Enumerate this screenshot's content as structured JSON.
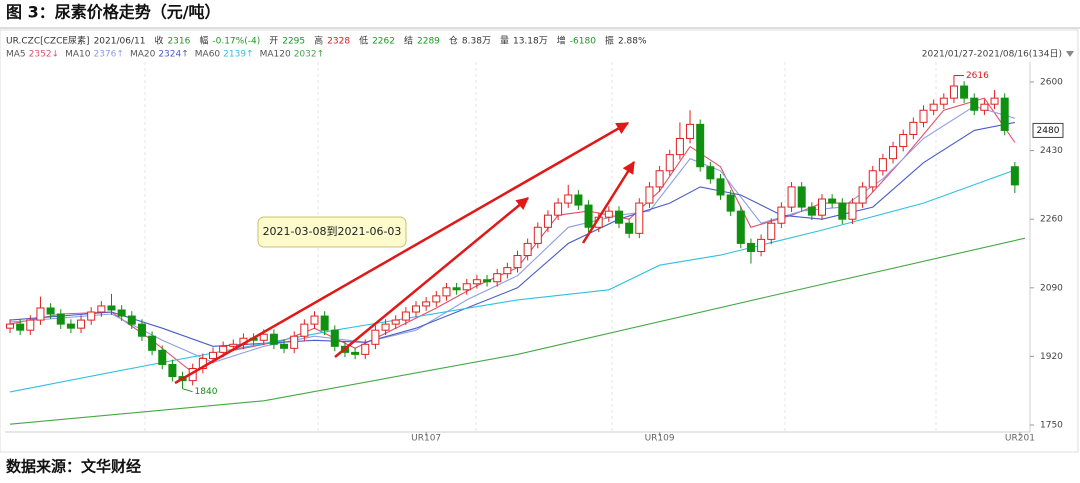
{
  "title": "图 3：尿素价格走势（元/吨）",
  "source": "数据来源：文华财经",
  "chart_data": {
    "type": "candlestick",
    "header": [
      {
        "label": "UR.CZC[CZCE尿素]",
        "value": "2021/06/11",
        "color": "#333333"
      },
      {
        "label": "收",
        "value": "2316",
        "color": "#1a9a1a"
      },
      {
        "label": "幅",
        "value": "-0.17%(-4)",
        "color": "#1a9a1a"
      },
      {
        "label": "开",
        "value": "2295",
        "color": "#1a9a1a"
      },
      {
        "label": "高",
        "value": "2328",
        "color": "#d02020"
      },
      {
        "label": "低",
        "value": "2262",
        "color": "#1a9a1a"
      },
      {
        "label": "结",
        "value": "2289",
        "color": "#1a9a1a"
      },
      {
        "label": "仓",
        "value": "8.38万",
        "color": "#333333"
      },
      {
        "label": "量",
        "value": "13.18万",
        "color": "#333333"
      },
      {
        "label": "增",
        "value": "-6180",
        "color": "#1a9a1a"
      },
      {
        "label": "振",
        "value": "2.88%",
        "color": "#333333"
      }
    ],
    "range_label": "2021/01/27-2021/08/16(134日)",
    "annotation": "2021-03-08到2021-06-03",
    "last_price": 2480,
    "up_color": "#e02020",
    "down_color": "#109010",
    "xlim": [
      0,
      100
    ],
    "xticks": [
      {
        "value": 41,
        "label": "UR107"
      },
      {
        "value": 64,
        "label": "UR109"
      },
      {
        "value": 99.5,
        "label": "UR201"
      }
    ],
    "ylim": [
      1750,
      2600
    ],
    "yticks": [
      1750,
      1920,
      2090,
      2260,
      2430,
      2600
    ],
    "open": [
      1990,
      2000,
      1985,
      2010,
      2040,
      2025,
      2000,
      1990,
      2010,
      2030,
      2045,
      2035,
      2020,
      2000,
      1970,
      1935,
      1900,
      1870,
      1860,
      1890,
      1915,
      1930,
      1945,
      1950,
      1965,
      1960,
      1975,
      1950,
      1940,
      1970,
      2000,
      2020,
      1985,
      1945,
      1930,
      1925,
      1950,
      1985,
      2000,
      2010,
      2030,
      2045,
      2055,
      2070,
      2090,
      2085,
      2100,
      2110,
      2105,
      2125,
      2140,
      2170,
      2200,
      2240,
      2270,
      2300,
      2320,
      2295,
      2240,
      2265,
      2280,
      2250,
      2225,
      2300,
      2340,
      2380,
      2420,
      2460,
      2495,
      2390,
      2360,
      2320,
      2280,
      2200,
      2180,
      2210,
      2250,
      2290,
      2340,
      2290,
      2270,
      2310,
      2300,
      2260,
      2300,
      2340,
      2380,
      2410,
      2440,
      2470,
      2500,
      2530,
      2545,
      2560,
      2590,
      2560,
      2530,
      2545,
      2560,
      2390
    ],
    "high": [
      2012,
      2012,
      2022,
      2068,
      2052,
      2037,
      2012,
      2022,
      2042,
      2057,
      2075,
      2047,
      2032,
      2012,
      1982,
      1947,
      1912,
      1882,
      1902,
      1927,
      1942,
      1957,
      1962,
      1977,
      1977,
      1987,
      1987,
      1962,
      1982,
      2012,
      2032,
      2032,
      1997,
      1957,
      1942,
      1962,
      1997,
      2012,
      2022,
      2042,
      2057,
      2067,
      2082,
      2102,
      2102,
      2112,
      2122,
      2122,
      2137,
      2152,
      2182,
      2212,
      2252,
      2282,
      2312,
      2345,
      2332,
      2307,
      2277,
      2292,
      2292,
      2262,
      2312,
      2352,
      2392,
      2432,
      2500,
      2530,
      2507,
      2402,
      2372,
      2332,
      2292,
      2212,
      2222,
      2262,
      2302,
      2352,
      2352,
      2302,
      2322,
      2322,
      2312,
      2312,
      2352,
      2392,
      2422,
      2452,
      2482,
      2512,
      2542,
      2557,
      2572,
      2616,
      2602,
      2572,
      2557,
      2580,
      2572,
      2402
    ],
    "low": [
      1978,
      1973,
      1973,
      1998,
      2013,
      1988,
      1978,
      1978,
      1998,
      2018,
      2023,
      2008,
      1988,
      1958,
      1923,
      1888,
      1858,
      1840,
      1848,
      1878,
      1903,
      1918,
      1933,
      1938,
      1948,
      1948,
      1938,
      1928,
      1928,
      1958,
      1988,
      1973,
      1933,
      1918,
      1913,
      1913,
      1938,
      1973,
      1988,
      1998,
      2018,
      2033,
      2043,
      2058,
      2073,
      2073,
      2088,
      2093,
      2093,
      2113,
      2128,
      2158,
      2188,
      2228,
      2258,
      2288,
      2283,
      2228,
      2228,
      2253,
      2238,
      2213,
      2213,
      2288,
      2328,
      2368,
      2408,
      2448,
      2378,
      2348,
      2308,
      2268,
      2188,
      2150,
      2168,
      2198,
      2238,
      2278,
      2278,
      2258,
      2258,
      2288,
      2248,
      2248,
      2288,
      2328,
      2368,
      2398,
      2428,
      2458,
      2488,
      2518,
      2533,
      2548,
      2548,
      2518,
      2518,
      2533,
      2468,
      2325
    ],
    "close": [
      2000,
      1985,
      2010,
      2040,
      2025,
      2000,
      1990,
      2010,
      2030,
      2045,
      2035,
      2020,
      2000,
      1970,
      1935,
      1900,
      1870,
      1860,
      1890,
      1915,
      1930,
      1945,
      1950,
      1965,
      1960,
      1975,
      1950,
      1940,
      1970,
      2000,
      2020,
      1985,
      1945,
      1930,
      1925,
      1950,
      1985,
      2000,
      2010,
      2030,
      2045,
      2055,
      2070,
      2090,
      2085,
      2100,
      2110,
      2105,
      2125,
      2140,
      2170,
      2200,
      2240,
      2270,
      2300,
      2320,
      2295,
      2240,
      2265,
      2280,
      2250,
      2225,
      2300,
      2340,
      2380,
      2420,
      2460,
      2495,
      2390,
      2360,
      2320,
      2280,
      2200,
      2180,
      2210,
      2250,
      2290,
      2340,
      2290,
      2270,
      2310,
      2300,
      2260,
      2300,
      2340,
      2380,
      2410,
      2440,
      2470,
      2500,
      2530,
      2545,
      2560,
      2590,
      2560,
      2530,
      2545,
      2560,
      2480,
      2345
    ],
    "series": [
      {
        "name": "MA5",
        "label": "2352↓",
        "color": "#e0506a",
        "x": [
          0,
          5,
          10,
          14,
          18,
          22,
          27,
          30,
          34,
          38,
          42,
          46,
          50,
          54,
          57,
          61,
          64,
          67,
          70,
          73,
          77,
          80,
          84,
          88,
          92,
          96,
          99
        ],
        "values": [
          2000,
          2025,
          2030,
          1960,
          1880,
          1935,
          1960,
          1990,
          1940,
          1990,
          2040,
          2095,
          2140,
          2270,
          2280,
          2260,
          2330,
          2440,
          2390,
          2240,
          2270,
          2300,
          2300,
          2410,
          2530,
          2560,
          2450
        ]
      },
      {
        "name": "MA10",
        "label": "2376↑",
        "color": "#8f9ee6",
        "x": [
          0,
          10,
          15,
          20,
          25,
          30,
          35,
          40,
          45,
          50,
          55,
          60,
          63,
          67,
          70,
          74,
          78,
          82,
          86,
          90,
          95,
          99
        ],
        "values": [
          2005,
          2025,
          1960,
          1905,
          1945,
          1970,
          1955,
          1985,
          2060,
          2120,
          2240,
          2270,
          2280,
          2410,
          2380,
          2250,
          2280,
          2290,
          2360,
          2460,
          2540,
          2510
        ]
      },
      {
        "name": "MA20",
        "label": "2324↑",
        "color": "#4a5cc8",
        "x": [
          0,
          10,
          15,
          20,
          30,
          35,
          40,
          45,
          50,
          55,
          60,
          65,
          68,
          72,
          76,
          80,
          85,
          90,
          95,
          99
        ],
        "values": [
          2010,
          2030,
          1990,
          1945,
          1960,
          1955,
          1990,
          2040,
          2090,
          2200,
          2260,
          2300,
          2340,
          2320,
          2270,
          2260,
          2290,
          2400,
          2480,
          2500
        ]
      },
      {
        "name": "MA60",
        "label": "2139↑",
        "color": "#30c0e0",
        "x": [
          0,
          15,
          32,
          50,
          59,
          64,
          70,
          80,
          90,
          99
        ],
        "values": [
          1832,
          1905,
          1985,
          2060,
          2085,
          2146,
          2171,
          2233,
          2300,
          2382
        ]
      },
      {
        "name": "MA120",
        "label": "2032↑",
        "color": "#45a845",
        "x": [
          0,
          25,
          50,
          75,
          100
        ],
        "values": [
          1752,
          1810,
          1925,
          2070,
          2213
        ]
      }
    ]
  }
}
